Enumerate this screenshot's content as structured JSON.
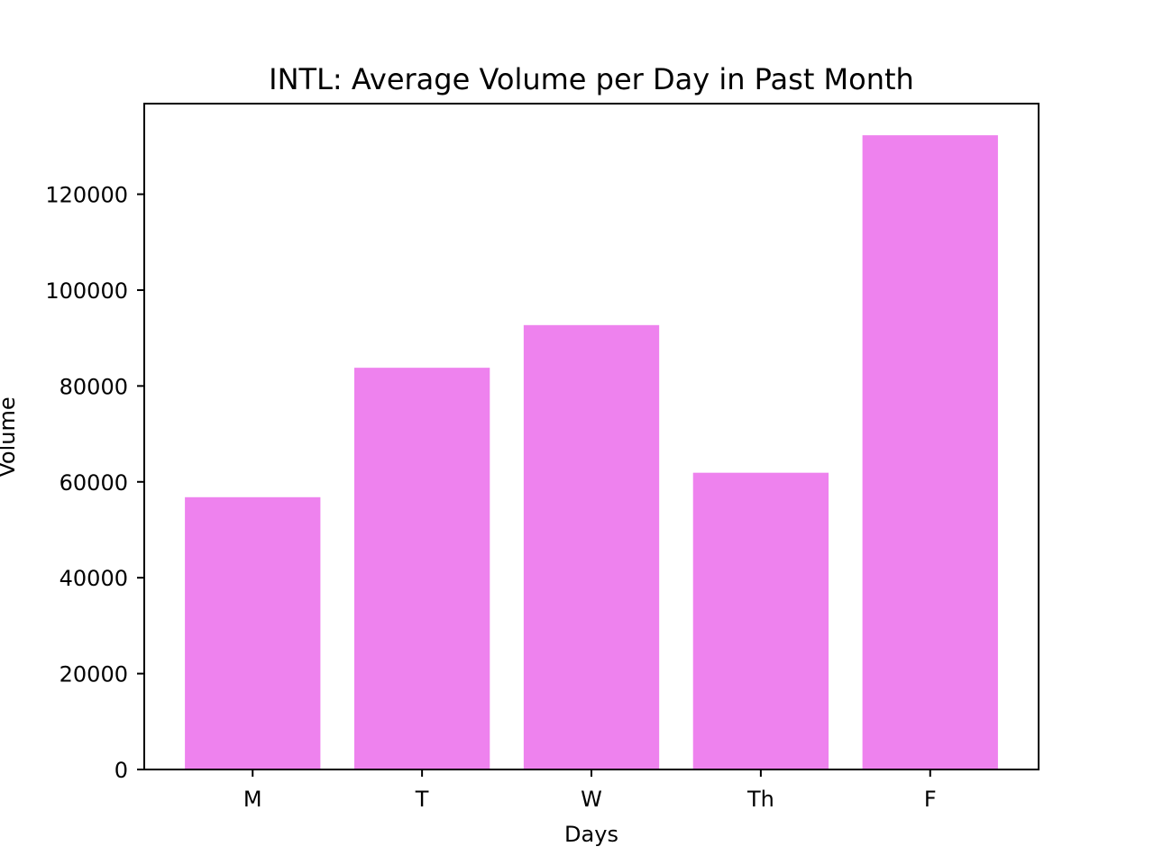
{
  "chart_data": {
    "type": "bar",
    "title": "INTL: Average Volume per Day in Past Month",
    "xlabel": "Days",
    "ylabel": "Volume",
    "categories": [
      "M",
      "T",
      "W",
      "Th",
      "F"
    ],
    "values": [
      56800,
      83800,
      92700,
      61900,
      132300
    ],
    "ylim": [
      0,
      138900
    ],
    "yticks": [
      0,
      20000,
      40000,
      60000,
      80000,
      100000,
      120000
    ],
    "ytick_labels": [
      "0",
      "20000",
      "40000",
      "60000",
      "80000",
      "100000",
      "120000"
    ],
    "grid": false,
    "legend": "none",
    "bar_color": "#ee82ee"
  }
}
